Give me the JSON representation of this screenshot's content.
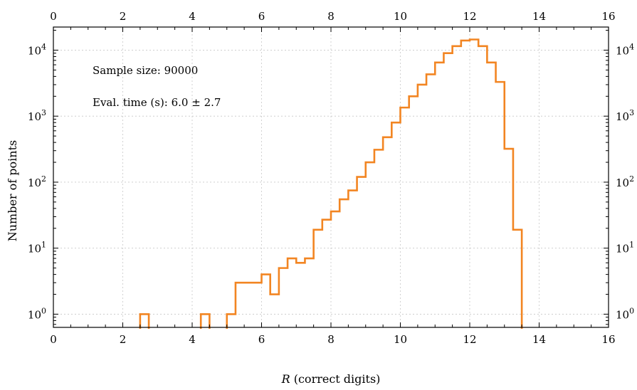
{
  "chart_data": {
    "type": "histogram",
    "xlabel_var": "R",
    "xlabel_rest": " (correct digits)",
    "ylabel": "Number of points",
    "xlim": [
      0,
      16
    ],
    "ylim_log10": [
      -0.2,
      0.35
    ],
    "yscale": "log",
    "grid": true,
    "x_ticks": [
      "0",
      "2",
      "4",
      "6",
      "8",
      "10",
      "12",
      "14",
      "16"
    ],
    "y_tick_exponents": [
      "0",
      "1",
      "2",
      "3",
      "4"
    ],
    "y_tick_base": "10",
    "color": "#f28522",
    "annotations": [
      {
        "text": "Sample size: 90000"
      },
      {
        "text": "Eval. time (s): 6.0 ± 2.7"
      }
    ],
    "bins": [
      {
        "x0": 2.5,
        "x1": 2.75,
        "count": 1
      },
      {
        "x0": 4.25,
        "x1": 4.5,
        "count": 1
      },
      {
        "x0": 5.0,
        "x1": 5.25,
        "count": 1
      },
      {
        "x0": 5.25,
        "x1": 6.0,
        "count": 3
      },
      {
        "x0": 6.0,
        "x1": 6.25,
        "count": 4
      },
      {
        "x0": 6.25,
        "x1": 6.5,
        "count": 2
      },
      {
        "x0": 6.5,
        "x1": 6.75,
        "count": 5
      },
      {
        "x0": 6.75,
        "x1": 7.0,
        "count": 7
      },
      {
        "x0": 7.0,
        "x1": 7.25,
        "count": 6
      },
      {
        "x0": 7.25,
        "x1": 7.5,
        "count": 7
      },
      {
        "x0": 7.5,
        "x1": 7.75,
        "count": 19
      },
      {
        "x0": 7.75,
        "x1": 8.0,
        "count": 27
      },
      {
        "x0": 8.0,
        "x1": 8.25,
        "count": 36
      },
      {
        "x0": 8.25,
        "x1": 8.5,
        "count": 55
      },
      {
        "x0": 8.5,
        "x1": 8.75,
        "count": 75
      },
      {
        "x0": 8.75,
        "x1": 9.0,
        "count": 120
      },
      {
        "x0": 9.0,
        "x1": 9.25,
        "count": 200
      },
      {
        "x0": 9.25,
        "x1": 9.5,
        "count": 310
      },
      {
        "x0": 9.5,
        "x1": 9.75,
        "count": 480
      },
      {
        "x0": 9.75,
        "x1": 10.0,
        "count": 800
      },
      {
        "x0": 10.0,
        "x1": 10.25,
        "count": 1350
      },
      {
        "x0": 10.25,
        "x1": 10.5,
        "count": 2000
      },
      {
        "x0": 10.5,
        "x1": 10.75,
        "count": 3000
      },
      {
        "x0": 10.75,
        "x1": 11.0,
        "count": 4300
      },
      {
        "x0": 11.0,
        "x1": 11.25,
        "count": 6500
      },
      {
        "x0": 11.25,
        "x1": 11.5,
        "count": 9000
      },
      {
        "x0": 11.5,
        "x1": 11.75,
        "count": 11500
      },
      {
        "x0": 11.75,
        "x1": 12.0,
        "count": 14000
      },
      {
        "x0": 12.0,
        "x1": 12.25,
        "count": 14500
      },
      {
        "x0": 12.25,
        "x1": 12.5,
        "count": 11500
      },
      {
        "x0": 12.5,
        "x1": 12.75,
        "count": 6500
      },
      {
        "x0": 12.75,
        "x1": 13.0,
        "count": 3300
      },
      {
        "x0": 13.0,
        "x1": 13.25,
        "count": 320
      },
      {
        "x0": 13.25,
        "x1": 13.5,
        "count": 19
      }
    ]
  }
}
